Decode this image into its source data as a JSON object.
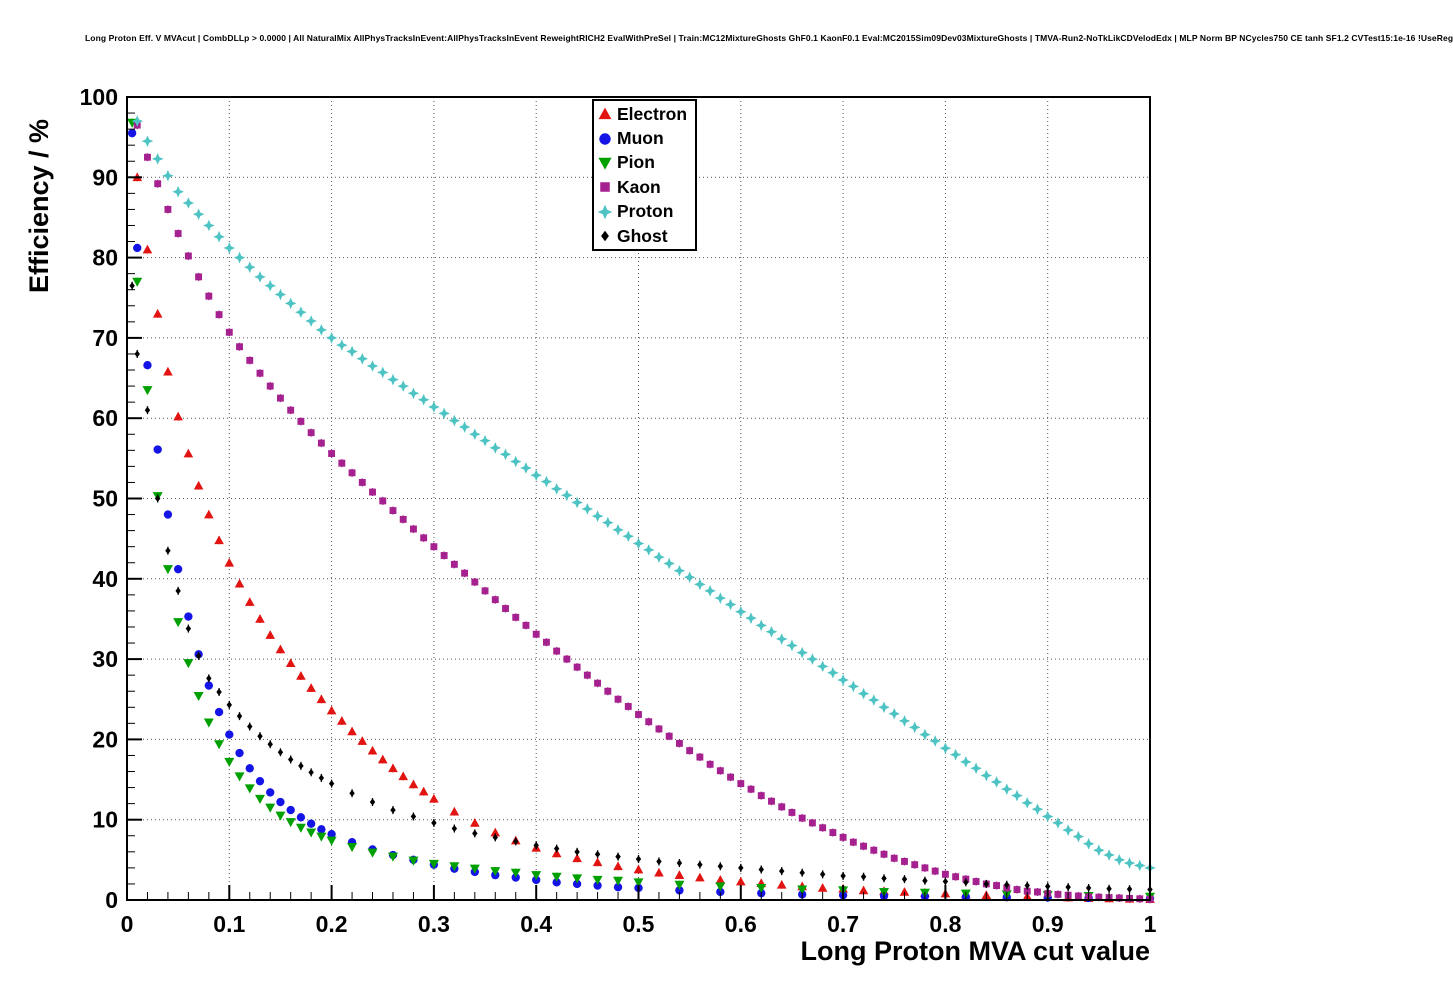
{
  "title": "Long Proton Eff. V MVAcut | CombDLLp > 0.0000 | All NaturalMix AllPhysTracksInEvent:AllPhysTracksInEvent ReweightRICH2 EvalWithPreSel | Train:MC12MixtureGhosts GhF0.1 KaonF0.1 Eval:MC2015Sim09Dev03MixtureGhosts | TMVA-Run2-NoTkLikCDVelodEdx | MLP Norm BP NCycles750 CE tanh SF1.2 CVTest15:1e-16 !UseReg",
  "chart_data": {
    "type": "scatter",
    "xlabel": "Long Proton MVA cut value",
    "ylabel": "Efficiency / %",
    "xlim": [
      0,
      1
    ],
    "ylim": [
      0,
      100
    ],
    "grid": true,
    "grid_style": "dotted",
    "legend_position": "top-center",
    "x_ticks": {
      "values": [
        0,
        0.1,
        0.2,
        0.3,
        0.4,
        0.5,
        0.6,
        0.7,
        0.8,
        0.9,
        1
      ],
      "labels": [
        "0",
        "0.1",
        "0.2",
        "0.3",
        "0.4",
        "0.5",
        "0.6",
        "0.7",
        "0.8",
        "0.9",
        "1"
      ]
    },
    "y_ticks": {
      "values": [
        0,
        10,
        20,
        30,
        40,
        50,
        60,
        70,
        80,
        90,
        100
      ],
      "labels": [
        "0",
        "10",
        "20",
        "30",
        "40",
        "50",
        "60",
        "70",
        "80",
        "90",
        "100"
      ]
    },
    "series": [
      {
        "name": "Electron",
        "color": "#e21411",
        "marker": "triangle-up",
        "points": [
          [
            0.01,
            90.0
          ],
          [
            0.02,
            81.0
          ],
          [
            0.03,
            73.0
          ],
          [
            0.04,
            65.8
          ],
          [
            0.05,
            60.2
          ],
          [
            0.06,
            55.6
          ],
          [
            0.07,
            51.6
          ],
          [
            0.08,
            48.0
          ],
          [
            0.09,
            44.8
          ],
          [
            0.1,
            42.0
          ],
          [
            0.11,
            39.4
          ],
          [
            0.12,
            37.1
          ],
          [
            0.13,
            35.0
          ],
          [
            0.14,
            33.0
          ],
          [
            0.15,
            31.2
          ],
          [
            0.16,
            29.5
          ],
          [
            0.17,
            27.9
          ],
          [
            0.18,
            26.4
          ],
          [
            0.19,
            25.0
          ],
          [
            0.2,
            23.6
          ],
          [
            0.21,
            22.3
          ],
          [
            0.22,
            21.0
          ],
          [
            0.23,
            19.8
          ],
          [
            0.24,
            18.6
          ],
          [
            0.25,
            17.5
          ],
          [
            0.26,
            16.4
          ],
          [
            0.27,
            15.4
          ],
          [
            0.28,
            14.4
          ],
          [
            0.29,
            13.5
          ],
          [
            0.3,
            12.6
          ],
          [
            0.32,
            11.0
          ],
          [
            0.34,
            9.6
          ],
          [
            0.36,
            8.4
          ],
          [
            0.38,
            7.4
          ],
          [
            0.4,
            6.5
          ],
          [
            0.42,
            5.8
          ],
          [
            0.44,
            5.2
          ],
          [
            0.46,
            4.7
          ],
          [
            0.48,
            4.2
          ],
          [
            0.5,
            3.8
          ],
          [
            0.52,
            3.4
          ],
          [
            0.54,
            3.1
          ],
          [
            0.56,
            2.8
          ],
          [
            0.58,
            2.5
          ],
          [
            0.6,
            2.3
          ],
          [
            0.62,
            2.1
          ],
          [
            0.64,
            1.9
          ],
          [
            0.66,
            1.7
          ],
          [
            0.68,
            1.5
          ],
          [
            0.7,
            1.4
          ],
          [
            0.72,
            1.2
          ],
          [
            0.74,
            1.1
          ],
          [
            0.76,
            1.0
          ],
          [
            0.78,
            0.9
          ],
          [
            0.8,
            0.8
          ],
          [
            0.82,
            0.7
          ],
          [
            0.84,
            0.6
          ],
          [
            0.86,
            0.5
          ],
          [
            0.88,
            0.45
          ],
          [
            0.9,
            0.4
          ],
          [
            0.92,
            0.3
          ],
          [
            0.94,
            0.25
          ],
          [
            0.96,
            0.2
          ],
          [
            0.98,
            0.15
          ],
          [
            1.0,
            0.1
          ]
        ]
      },
      {
        "name": "Muon",
        "color": "#1414e6",
        "marker": "circle",
        "points": [
          [
            0.005,
            95.5
          ],
          [
            0.01,
            81.2
          ],
          [
            0.02,
            66.6
          ],
          [
            0.03,
            56.1
          ],
          [
            0.04,
            48.0
          ],
          [
            0.05,
            41.2
          ],
          [
            0.06,
            35.3
          ],
          [
            0.07,
            30.6
          ],
          [
            0.08,
            26.7
          ],
          [
            0.09,
            23.4
          ],
          [
            0.1,
            20.6
          ],
          [
            0.11,
            18.3
          ],
          [
            0.12,
            16.4
          ],
          [
            0.13,
            14.8
          ],
          [
            0.14,
            13.4
          ],
          [
            0.15,
            12.2
          ],
          [
            0.16,
            11.2
          ],
          [
            0.17,
            10.3
          ],
          [
            0.18,
            9.5
          ],
          [
            0.19,
            8.8
          ],
          [
            0.2,
            8.2
          ],
          [
            0.22,
            7.2
          ],
          [
            0.24,
            6.3
          ],
          [
            0.26,
            5.6
          ],
          [
            0.28,
            5.0
          ],
          [
            0.3,
            4.4
          ],
          [
            0.32,
            3.9
          ],
          [
            0.34,
            3.5
          ],
          [
            0.36,
            3.1
          ],
          [
            0.38,
            2.8
          ],
          [
            0.4,
            2.5
          ],
          [
            0.42,
            2.2
          ],
          [
            0.44,
            2.0
          ],
          [
            0.46,
            1.8
          ],
          [
            0.48,
            1.6
          ],
          [
            0.5,
            1.5
          ],
          [
            0.54,
            1.2
          ],
          [
            0.58,
            1.0
          ],
          [
            0.62,
            0.85
          ],
          [
            0.66,
            0.7
          ],
          [
            0.7,
            0.6
          ],
          [
            0.74,
            0.5
          ],
          [
            0.78,
            0.45
          ],
          [
            0.82,
            0.4
          ],
          [
            0.86,
            0.35
          ],
          [
            0.9,
            0.3
          ],
          [
            0.94,
            0.25
          ],
          [
            1.0,
            0.2
          ]
        ]
      },
      {
        "name": "Pion",
        "color": "#00a000",
        "marker": "triangle-down",
        "points": [
          [
            0.005,
            96.8
          ],
          [
            0.01,
            77.0
          ],
          [
            0.02,
            63.5
          ],
          [
            0.03,
            50.3
          ],
          [
            0.04,
            41.2
          ],
          [
            0.05,
            34.6
          ],
          [
            0.06,
            29.5
          ],
          [
            0.07,
            25.4
          ],
          [
            0.08,
            22.1
          ],
          [
            0.09,
            19.4
          ],
          [
            0.1,
            17.2
          ],
          [
            0.11,
            15.4
          ],
          [
            0.12,
            13.9
          ],
          [
            0.13,
            12.6
          ],
          [
            0.14,
            11.5
          ],
          [
            0.15,
            10.5
          ],
          [
            0.16,
            9.7
          ],
          [
            0.17,
            9.0
          ],
          [
            0.18,
            8.4
          ],
          [
            0.19,
            7.9
          ],
          [
            0.2,
            7.4
          ],
          [
            0.22,
            6.6
          ],
          [
            0.24,
            5.9
          ],
          [
            0.26,
            5.4
          ],
          [
            0.28,
            4.9
          ],
          [
            0.3,
            4.5
          ],
          [
            0.32,
            4.2
          ],
          [
            0.34,
            3.9
          ],
          [
            0.36,
            3.6
          ],
          [
            0.38,
            3.4
          ],
          [
            0.4,
            3.1
          ],
          [
            0.42,
            2.9
          ],
          [
            0.44,
            2.7
          ],
          [
            0.46,
            2.5
          ],
          [
            0.48,
            2.4
          ],
          [
            0.5,
            2.2
          ],
          [
            0.54,
            1.9
          ],
          [
            0.58,
            1.7
          ],
          [
            0.62,
            1.5
          ],
          [
            0.66,
            1.3
          ],
          [
            0.7,
            1.2
          ],
          [
            0.74,
            1.0
          ],
          [
            0.78,
            0.9
          ],
          [
            0.82,
            0.8
          ],
          [
            0.86,
            0.7
          ],
          [
            0.9,
            0.6
          ],
          [
            0.94,
            0.5
          ],
          [
            1.0,
            0.4
          ]
        ]
      },
      {
        "name": "Kaon",
        "color": "#a4218f",
        "marker": "square",
        "x_start": 0.01,
        "x_step": 0.01,
        "values": [
          96.5,
          92.5,
          89.2,
          86.0,
          83.0,
          80.2,
          77.6,
          75.2,
          72.9,
          70.7,
          68.9,
          67.2,
          65.6,
          64.0,
          62.5,
          61.0,
          59.6,
          58.2,
          56.9,
          55.6,
          54.4,
          53.2,
          52.0,
          50.8,
          49.7,
          48.5,
          47.4,
          46.2,
          45.1,
          44.0,
          42.9,
          41.8,
          40.7,
          39.6,
          38.5,
          37.4,
          36.3,
          35.2,
          34.2,
          33.1,
          32.1,
          31.0,
          30.0,
          29.0,
          28.0,
          27.0,
          26.0,
          25.0,
          24.1,
          23.1,
          22.2,
          21.3,
          20.4,
          19.5,
          18.6,
          17.8,
          16.9,
          16.1,
          15.3,
          14.5,
          13.8,
          13.0,
          12.3,
          11.6,
          10.9,
          10.2,
          9.6,
          9.0,
          8.4,
          7.8,
          7.2,
          6.7,
          6.2,
          5.7,
          5.2,
          4.8,
          4.4,
          4.0,
          3.6,
          3.2,
          2.9,
          2.6,
          2.3,
          2.0,
          1.8,
          1.5,
          1.3,
          1.1,
          1.0,
          0.8,
          0.7,
          0.6,
          0.5,
          0.4,
          0.35,
          0.3,
          0.25,
          0.2,
          0.15,
          0.1
        ]
      },
      {
        "name": "Proton",
        "color": "#4ec3c3",
        "marker": "star",
        "x_start": 0.01,
        "x_step": 0.01,
        "values": [
          97.0,
          94.5,
          92.3,
          90.2,
          88.2,
          86.8,
          85.4,
          84.0,
          82.6,
          81.2,
          80.0,
          78.8,
          77.6,
          76.5,
          75.4,
          74.3,
          73.2,
          72.1,
          71.0,
          70.0,
          69.1,
          68.3,
          67.4,
          66.5,
          65.7,
          64.8,
          64.0,
          63.1,
          62.3,
          61.4,
          60.6,
          59.7,
          58.9,
          58.0,
          57.2,
          56.3,
          55.5,
          54.6,
          53.8,
          52.9,
          52.1,
          51.2,
          50.4,
          49.5,
          48.7,
          47.8,
          47.0,
          46.1,
          45.3,
          44.4,
          43.6,
          42.7,
          41.9,
          41.0,
          40.2,
          39.3,
          38.5,
          37.6,
          36.8,
          35.9,
          35.1,
          34.2,
          33.4,
          32.5,
          31.7,
          30.8,
          30.0,
          29.1,
          28.3,
          27.4,
          26.6,
          25.7,
          24.9,
          24.0,
          23.2,
          22.3,
          21.5,
          20.6,
          19.8,
          18.9,
          18.1,
          17.2,
          16.4,
          15.5,
          14.7,
          13.8,
          13.0,
          12.1,
          11.3,
          10.4,
          9.6,
          8.7,
          7.9,
          7.0,
          6.2,
          5.6,
          5.0,
          4.6,
          4.3,
          4.0
        ]
      },
      {
        "name": "Ghost",
        "color": "#000000",
        "marker": "diamond",
        "points": [
          [
            0.005,
            76.5
          ],
          [
            0.01,
            68.0
          ],
          [
            0.02,
            61.0
          ],
          [
            0.03,
            50.0
          ],
          [
            0.04,
            43.5
          ],
          [
            0.05,
            38.5
          ],
          [
            0.06,
            33.8
          ],
          [
            0.07,
            30.4
          ],
          [
            0.08,
            27.6
          ],
          [
            0.09,
            25.9
          ],
          [
            0.1,
            24.3
          ],
          [
            0.11,
            22.9
          ],
          [
            0.12,
            21.6
          ],
          [
            0.13,
            20.4
          ],
          [
            0.14,
            19.4
          ],
          [
            0.15,
            18.4
          ],
          [
            0.16,
            17.5
          ],
          [
            0.17,
            16.7
          ],
          [
            0.18,
            15.9
          ],
          [
            0.19,
            15.2
          ],
          [
            0.2,
            14.5
          ],
          [
            0.22,
            13.3
          ],
          [
            0.24,
            12.2
          ],
          [
            0.26,
            11.2
          ],
          [
            0.28,
            10.4
          ],
          [
            0.3,
            9.6
          ],
          [
            0.32,
            8.9
          ],
          [
            0.34,
            8.3
          ],
          [
            0.36,
            7.8
          ],
          [
            0.38,
            7.3
          ],
          [
            0.4,
            6.8
          ],
          [
            0.42,
            6.4
          ],
          [
            0.44,
            6.0
          ],
          [
            0.46,
            5.7
          ],
          [
            0.48,
            5.4
          ],
          [
            0.5,
            5.1
          ],
          [
            0.52,
            4.8
          ],
          [
            0.54,
            4.6
          ],
          [
            0.56,
            4.4
          ],
          [
            0.58,
            4.2
          ],
          [
            0.6,
            4.0
          ],
          [
            0.62,
            3.8
          ],
          [
            0.64,
            3.6
          ],
          [
            0.66,
            3.4
          ],
          [
            0.68,
            3.2
          ],
          [
            0.7,
            3.0
          ],
          [
            0.72,
            2.9
          ],
          [
            0.74,
            2.7
          ],
          [
            0.76,
            2.6
          ],
          [
            0.78,
            2.4
          ],
          [
            0.8,
            2.3
          ],
          [
            0.82,
            2.2
          ],
          [
            0.84,
            2.0
          ],
          [
            0.86,
            1.9
          ],
          [
            0.88,
            1.8
          ],
          [
            0.9,
            1.7
          ],
          [
            0.92,
            1.6
          ],
          [
            0.94,
            1.5
          ],
          [
            0.96,
            1.4
          ],
          [
            0.98,
            1.35
          ],
          [
            1.0,
            1.3
          ]
        ]
      }
    ],
    "colors": {
      "frame": "#000000",
      "grid": "#555555",
      "background": "#ffffff"
    }
  }
}
